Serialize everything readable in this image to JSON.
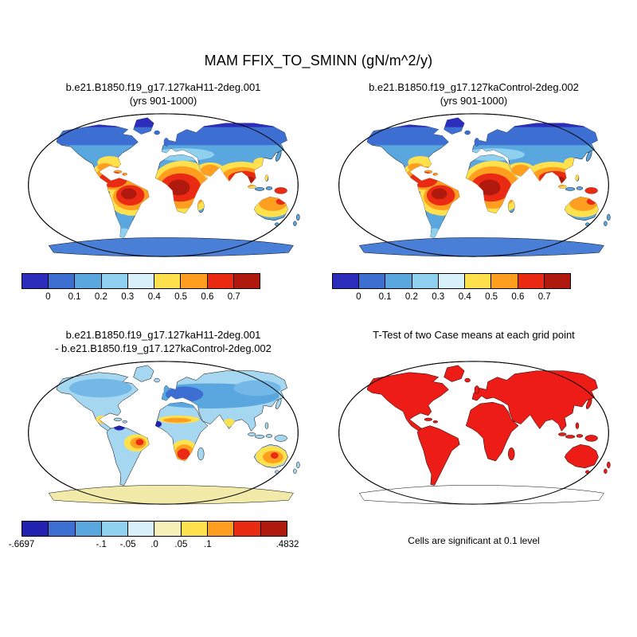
{
  "main_title": "MAM FFIX_TO_SMINN (gN/m^2/y)",
  "panels": [
    {
      "id": "case1",
      "title_line1": "b.e21.B1850.f19_g17.127kaH11-2deg.001",
      "title_line2": "(yrs 901-1000)"
    },
    {
      "id": "case2",
      "title_line1": "b.e21.B1850.f19_g17.127kaControl-2deg.002",
      "title_line2": "(yrs 901-1000)"
    },
    {
      "id": "diff",
      "title_line1": "b.e21.B1850.f19_g17.127kaH11-2deg.001",
      "title_line2": "- b.e21.B1850.f19_g17.127kaControl-2deg.002"
    },
    {
      "id": "ttest",
      "title_line1": "T-Test of two Case means at each grid point",
      "caption": "Cells are significant at 0.1 level"
    }
  ],
  "chart_data": [
    {
      "type": "heatmap",
      "panel": "top-left",
      "title": "b.e21.B1850.f19_g17.127kaH11-2deg.001 (yrs 901-1000)",
      "variable": "MAM FFIX_TO_SMINN",
      "units": "gN/m^2/y",
      "colorbar": {
        "colors": [
          "#2d2dbb",
          "#3d6fd2",
          "#5aa7e0",
          "#8fd0ee",
          "#d8f0fa",
          "#ffe14d",
          "#ff9e1f",
          "#ea2a12",
          "#b01a0e"
        ],
        "tick_labels": [
          "0",
          "0.1",
          "0.2",
          "0.3",
          "0.4",
          "0.5",
          "0.6",
          "0.7"
        ],
        "tick_positions": [
          0.111,
          0.222,
          0.333,
          0.444,
          0.556,
          0.667,
          0.778,
          0.889
        ]
      }
    },
    {
      "type": "heatmap",
      "panel": "top-right",
      "title": "b.e21.B1850.f19_g17.127kaControl-2deg.002 (yrs 901-1000)",
      "variable": "MAM FFIX_TO_SMINN",
      "units": "gN/m^2/y",
      "colorbar": {
        "colors": [
          "#2d2dbb",
          "#3d6fd2",
          "#5aa7e0",
          "#8fd0ee",
          "#d8f0fa",
          "#ffe14d",
          "#ff9e1f",
          "#ea2a12",
          "#b01a0e"
        ],
        "tick_labels": [
          "0",
          "0.1",
          "0.2",
          "0.3",
          "0.4",
          "0.5",
          "0.6",
          "0.7"
        ],
        "tick_positions": [
          0.111,
          0.222,
          0.333,
          0.444,
          0.556,
          0.667,
          0.778,
          0.889
        ]
      }
    },
    {
      "type": "heatmap",
      "panel": "bottom-left",
      "title": "b.e21.B1850.f19_g17.127kaH11-2deg.001 - b.e21.B1850.f19_g17.127kaControl-2deg.002",
      "min": -0.6697,
      "max": 0.4832,
      "colorbar": {
        "colors": [
          "#2222b0",
          "#3d6fd2",
          "#5aa7e0",
          "#8fd0ee",
          "#d8f0fa",
          "#f6f0b8",
          "#ffe14d",
          "#ff9e1f",
          "#ea2a12",
          "#b01a0e"
        ],
        "tick_labels": [
          "-.6697",
          "-.1",
          "-.05",
          ".0",
          ".05",
          ".1",
          ".4832"
        ],
        "tick_positions": [
          0,
          0.3,
          0.4,
          0.5,
          0.6,
          0.7,
          1
        ]
      }
    },
    {
      "type": "heatmap",
      "panel": "bottom-right",
      "title": "T-Test of two Case means at each grid point",
      "note": "Cells are significant at 0.1 level",
      "significant_color": "#ee1c16"
    }
  ]
}
